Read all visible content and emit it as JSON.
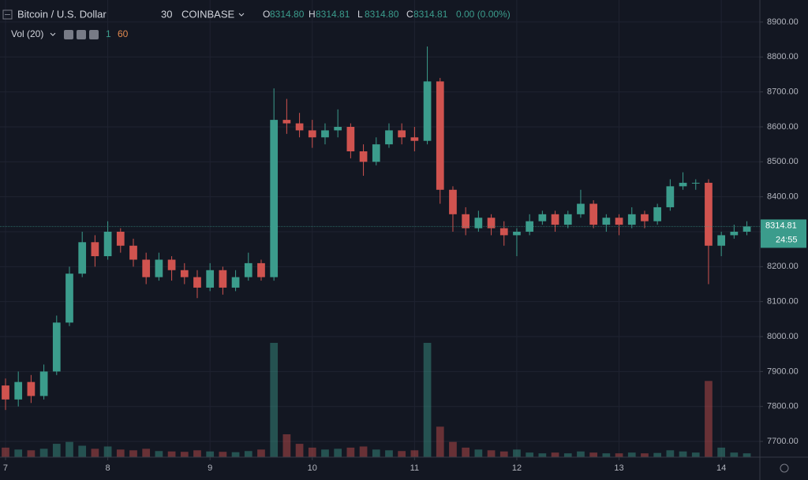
{
  "chart_data": {
    "type": "candlestick",
    "title": "Bitcoin / U.S. Dollar",
    "interval": "30",
    "exchange": "COINBASE",
    "ohlc_legend": {
      "labels": [
        "O",
        "H",
        "L",
        "C"
      ],
      "values": [
        "8314.80",
        "8314.81",
        "8314.80",
        "8314.81"
      ],
      "change": "0.00 (0.00%)"
    },
    "volume_indicator": {
      "label": "Vol (20)",
      "values": [
        1,
        60
      ]
    },
    "last_price": 8314.81,
    "countdown": "24:55",
    "up_color": "#3b9c8c",
    "down_color": "#d0534f",
    "grid": true,
    "x": [
      7,
      7.125,
      7.25,
      7.375,
      7.5,
      7.625,
      7.75,
      7.875,
      8,
      8.125,
      8.25,
      8.375,
      8.5,
      8.625,
      8.75,
      8.875,
      9,
      9.125,
      9.25,
      9.375,
      9.5,
      9.625,
      9.75,
      9.875,
      10,
      10.125,
      10.25,
      10.375,
      10.5,
      10.625,
      10.75,
      10.875,
      11,
      11.125,
      11.25,
      11.375,
      11.5,
      11.625,
      11.75,
      11.875,
      12,
      12.125,
      12.25,
      12.375,
      12.5,
      12.625,
      12.75,
      12.875,
      13,
      13.125,
      13.25,
      13.375,
      13.5,
      13.625,
      13.75,
      13.875,
      14,
      14.125,
      14.25
    ],
    "open": [
      7860,
      7820,
      7870,
      7830,
      7900,
      8040,
      8180,
      8270,
      8230,
      8300,
      8260,
      8220,
      8170,
      8220,
      8190,
      8170,
      8140,
      8190,
      8140,
      8170,
      8210,
      8170,
      8620,
      8610,
      8590,
      8570,
      8590,
      8600,
      8530,
      8500,
      8550,
      8590,
      8570,
      8560,
      8730,
      8420,
      8350,
      8310,
      8340,
      8310,
      8290,
      8300,
      8330,
      8350,
      8320,
      8350,
      8380,
      8320,
      8340,
      8320,
      8350,
      8330,
      8370,
      8430,
      8440,
      8440,
      8260,
      8290,
      8300
    ],
    "high": [
      7880,
      7900,
      7890,
      7920,
      8060,
      8200,
      8300,
      8290,
      8330,
      8310,
      8280,
      8240,
      8240,
      8230,
      8210,
      8190,
      8210,
      8200,
      8190,
      8240,
      8220,
      8710,
      8680,
      8640,
      8620,
      8610,
      8650,
      8610,
      8550,
      8570,
      8610,
      8610,
      8600,
      8830,
      8740,
      8430,
      8370,
      8360,
      8350,
      8330,
      8310,
      8350,
      8360,
      8360,
      8360,
      8420,
      8390,
      8350,
      8350,
      8370,
      8360,
      8380,
      8450,
      8470,
      8450,
      8450,
      8300,
      8320,
      8330
    ],
    "low": [
      7790,
      7800,
      7810,
      7820,
      7890,
      8030,
      8170,
      8200,
      8220,
      8240,
      8200,
      8150,
      8160,
      8160,
      8150,
      8110,
      8130,
      8120,
      8130,
      8160,
      8160,
      8160,
      8580,
      8570,
      8540,
      8550,
      8570,
      8510,
      8460,
      8490,
      8540,
      8550,
      8530,
      8550,
      8380,
      8300,
      8290,
      8300,
      8290,
      8260,
      8230,
      8290,
      8320,
      8300,
      8310,
      8340,
      8310,
      8300,
      8290,
      8310,
      8310,
      8320,
      8360,
      8420,
      8420,
      8150,
      8230,
      8280,
      8290
    ],
    "close": [
      7820,
      7870,
      7830,
      7900,
      8040,
      8180,
      8270,
      8230,
      8300,
      8260,
      8220,
      8170,
      8220,
      8190,
      8170,
      8140,
      8190,
      8140,
      8170,
      8210,
      8170,
      8620,
      8610,
      8590,
      8570,
      8590,
      8600,
      8530,
      8500,
      8550,
      8590,
      8570,
      8560,
      8730,
      8420,
      8350,
      8310,
      8340,
      8310,
      8290,
      8300,
      8330,
      8350,
      8320,
      8350,
      8380,
      8320,
      8340,
      8320,
      8350,
      8330,
      8370,
      8430,
      8440,
      8440,
      8260,
      8290,
      8300,
      8315
    ],
    "volume": [
      25,
      20,
      18,
      22,
      35,
      40,
      30,
      22,
      28,
      20,
      18,
      22,
      16,
      15,
      14,
      18,
      15,
      14,
      13,
      16,
      20,
      300,
      60,
      35,
      25,
      20,
      22,
      25,
      28,
      20,
      18,
      16,
      18,
      300,
      80,
      40,
      25,
      20,
      18,
      15,
      20,
      12,
      10,
      12,
      10,
      15,
      12,
      10,
      10,
      12,
      10,
      11,
      18,
      15,
      12,
      200,
      25,
      12,
      10
    ],
    "xlim": [
      6.946,
      14.377
    ],
    "xticks": [
      7,
      8,
      9,
      10,
      11,
      12,
      13,
      14
    ],
    "ylim": [
      7655,
      8963
    ],
    "yticks": [
      {
        "value": 7700,
        "label": "7700.00"
      },
      {
        "value": 7800,
        "label": "7800.00"
      },
      {
        "value": 7900,
        "label": "7900.00"
      },
      {
        "value": 8000,
        "label": "8000.00"
      },
      {
        "value": 8100,
        "label": "8100.00"
      },
      {
        "value": 8200,
        "label": "8200.00"
      },
      {
        "value": 8300,
        "label": "8300.00"
      },
      {
        "value": 8400,
        "label": "8400.00"
      },
      {
        "value": 8500,
        "label": "8500.00"
      },
      {
        "value": 8600,
        "label": "8600.00"
      },
      {
        "value": 8700,
        "label": "8700.00"
      },
      {
        "value": 8800,
        "label": "8800.00"
      },
      {
        "value": 8900,
        "label": "8900.00"
      }
    ]
  }
}
